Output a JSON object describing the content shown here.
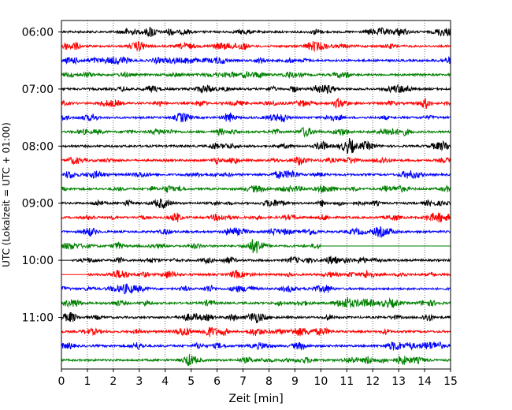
{
  "chart_data": {
    "type": "line",
    "title": "",
    "xlabel": "Zeit  [min]",
    "ylabel": "UTC (Lokalzeit = UTC + 01:00)",
    "xlim": [
      0,
      15
    ],
    "xticks": [
      "0",
      "1",
      "2",
      "3",
      "4",
      "5",
      "6",
      "7",
      "8",
      "9",
      "10",
      "11",
      "12",
      "13",
      "14",
      "15"
    ],
    "yticks": [
      "06:00",
      "07:00",
      "08:00",
      "09:00",
      "10:00",
      "11:00"
    ],
    "grid": "vertical dotted",
    "trace_interval_minutes": 15,
    "first_trace": "06:00",
    "trace_count": 24,
    "trace_colors": [
      "#000000",
      "#ff0000",
      "#0000ff",
      "#008000"
    ],
    "annotations_note_flat_segments": [
      {
        "trace": "09:45",
        "flat_from_min": 10.0,
        "flat_to_min": 15.0
      },
      {
        "trace": "10:00",
        "flat_from_min": 0.0,
        "flat_to_min": 0.4
      },
      {
        "trace": "10:15",
        "flat_from_min": 0.0,
        "flat_to_min": 1.0
      }
    ]
  }
}
